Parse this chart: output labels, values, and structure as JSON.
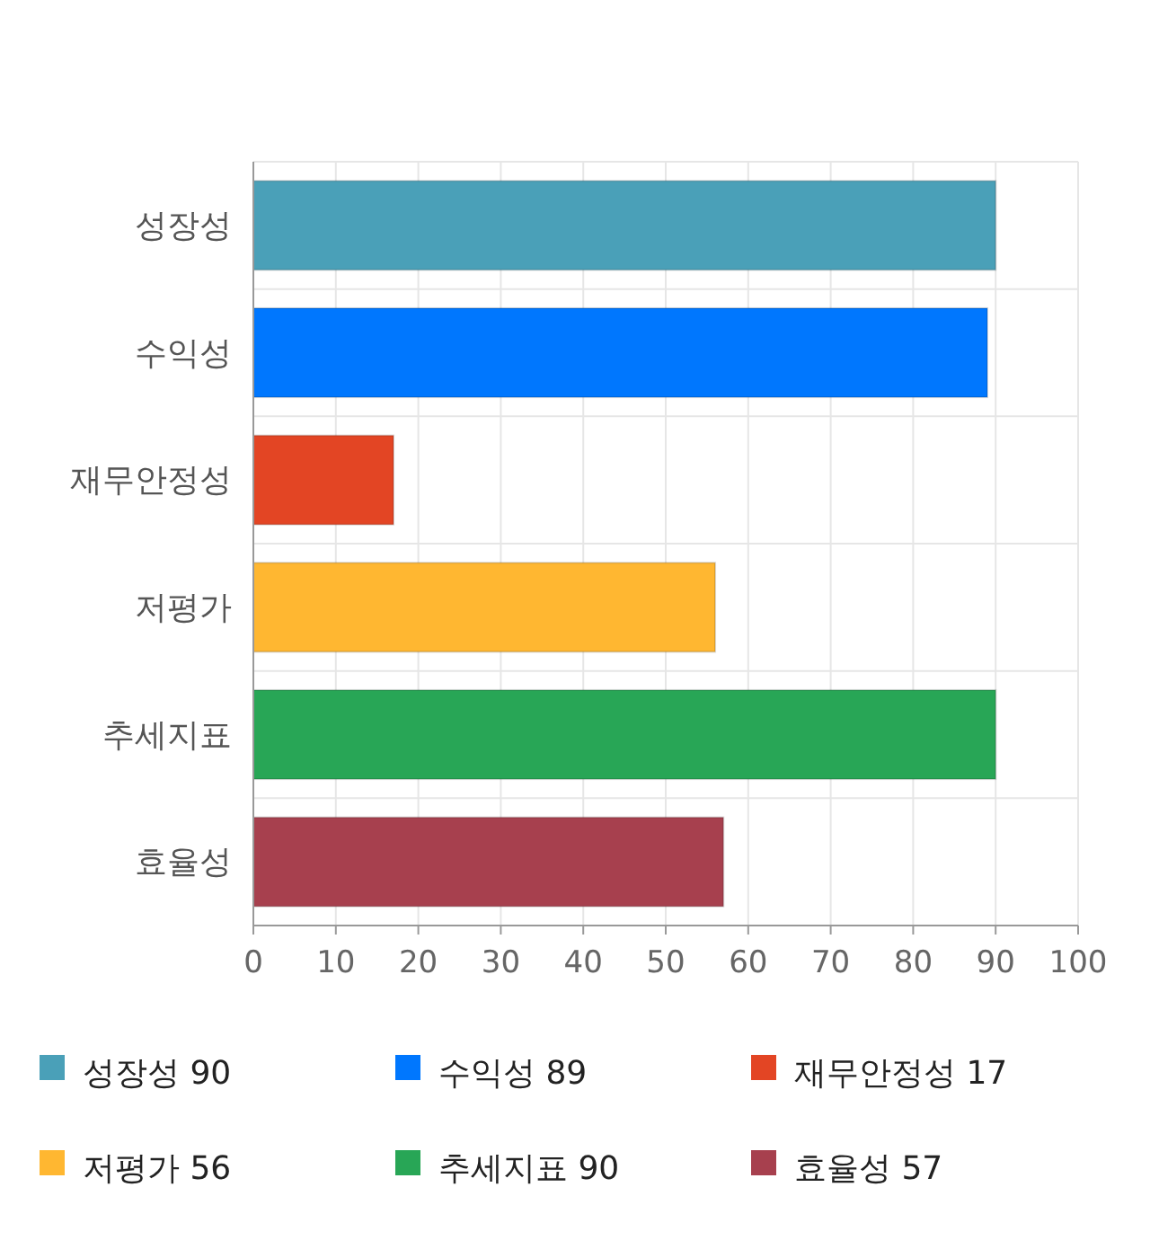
{
  "chart_data": {
    "type": "bar",
    "orientation": "horizontal",
    "categories": [
      "성장성",
      "수익성",
      "재무안정성",
      "저평가",
      "추세지표",
      "효율성"
    ],
    "series": [
      {
        "name": "성장성 90",
        "color": "#4aa0b8",
        "values": [
          90,
          null,
          null,
          null,
          null,
          null
        ]
      },
      {
        "name": "수익성 89",
        "color": "#0077fe",
        "values": [
          null,
          89,
          null,
          null,
          null,
          null
        ]
      },
      {
        "name": "재무안정성 17",
        "color": "#e34524",
        "values": [
          null,
          null,
          17,
          null,
          null,
          null
        ]
      },
      {
        "name": "저평가 56",
        "color": "#ffb731",
        "values": [
          null,
          null,
          null,
          56,
          null,
          null
        ]
      },
      {
        "name": "추세지표 90",
        "color": "#28a656",
        "values": [
          null,
          null,
          null,
          null,
          90,
          null
        ]
      },
      {
        "name": "효율성 57",
        "color": "#a7404e",
        "values": [
          null,
          null,
          null,
          null,
          null,
          57
        ]
      }
    ],
    "xlim": [
      0,
      100
    ],
    "xticks": [
      0,
      10,
      20,
      30,
      40,
      50,
      60,
      70,
      80,
      90,
      100
    ],
    "grid": true,
    "legend": "bottom"
  }
}
